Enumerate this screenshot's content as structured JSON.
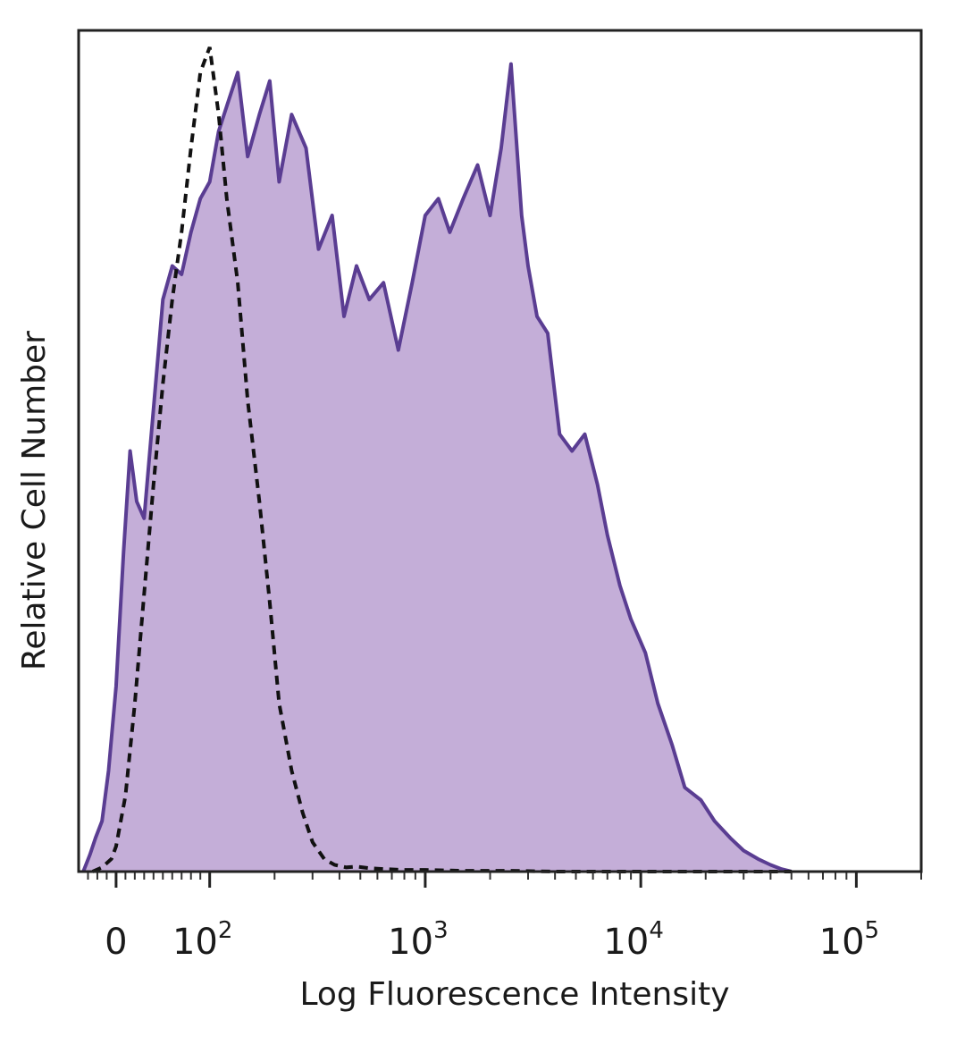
{
  "chart_data": {
    "type": "area",
    "title": "",
    "xlabel": "Log Fluorescence Intensity",
    "ylabel": "Relative Cell Number",
    "x_scale": "biexponential",
    "xlim": [
      -40,
      200000
    ],
    "ylim": [
      0,
      1.0
    ],
    "x_ticks": [
      {
        "value": 0,
        "label": "0"
      },
      {
        "value": 100,
        "label": "10",
        "exp": "2"
      },
      {
        "value": 1000,
        "label": "10",
        "exp": "3"
      },
      {
        "value": 10000,
        "label": "10",
        "exp": "4"
      },
      {
        "value": 100000,
        "label": "10",
        "exp": "5"
      }
    ],
    "grid": false,
    "legend": "none",
    "colors": {
      "stained_line": "#5a3d92",
      "stained_fill": "#c4aed8",
      "control_line": "#111111",
      "frame": "#222222"
    },
    "series": [
      {
        "style": "filled-solid",
        "x": [
          -35,
          -28,
          -22,
          -15,
          -8,
          0,
          8,
          15,
          22,
          30,
          40,
          50,
          60,
          70,
          80,
          90,
          100,
          110,
          120,
          135,
          150,
          170,
          190,
          210,
          240,
          280,
          320,
          370,
          420,
          480,
          550,
          640,
          750,
          870,
          1000,
          1150,
          1300,
          1500,
          1750,
          2000,
          2250,
          2500,
          2800,
          3000,
          3300,
          3700,
          4200,
          4800,
          5500,
          6300,
          7000,
          8000,
          9000,
          10500,
          12000,
          14000,
          16000,
          19000,
          22000,
          26000,
          30000,
          35000,
          40000,
          45000,
          50000
        ],
        "y": [
          0.0,
          0.02,
          0.04,
          0.06,
          0.12,
          0.22,
          0.38,
          0.5,
          0.44,
          0.42,
          0.55,
          0.68,
          0.72,
          0.71,
          0.76,
          0.8,
          0.82,
          0.88,
          0.91,
          0.95,
          0.85,
          0.9,
          0.94,
          0.82,
          0.9,
          0.86,
          0.74,
          0.78,
          0.66,
          0.72,
          0.68,
          0.7,
          0.62,
          0.7,
          0.78,
          0.8,
          0.76,
          0.8,
          0.84,
          0.78,
          0.86,
          0.96,
          0.78,
          0.72,
          0.66,
          0.64,
          0.52,
          0.5,
          0.52,
          0.46,
          0.4,
          0.34,
          0.3,
          0.26,
          0.2,
          0.15,
          0.1,
          0.085,
          0.06,
          0.04,
          0.025,
          0.015,
          0.008,
          0.003,
          0.0
        ]
      },
      {
        "style": "dashed",
        "x": [
          -25,
          -15,
          -5,
          0,
          10,
          20,
          30,
          40,
          50,
          60,
          70,
          80,
          90,
          100,
          110,
          120,
          135,
          150,
          170,
          190,
          210,
          240,
          270,
          300,
          340,
          380,
          430,
          480,
          550,
          650,
          800,
          1000,
          1500,
          2500,
          4000,
          7000,
          12000,
          25000,
          50000
        ],
        "y": [
          0.0,
          0.005,
          0.015,
          0.03,
          0.09,
          0.2,
          0.33,
          0.46,
          0.58,
          0.68,
          0.76,
          0.86,
          0.95,
          0.98,
          0.9,
          0.8,
          0.7,
          0.56,
          0.44,
          0.32,
          0.2,
          0.12,
          0.07,
          0.035,
          0.015,
          0.008,
          0.005,
          0.006,
          0.004,
          0.003,
          0.002,
          0.002,
          0.001,
          0.001,
          0.0,
          0.0,
          0.0,
          0.0,
          0.0
        ]
      }
    ]
  }
}
